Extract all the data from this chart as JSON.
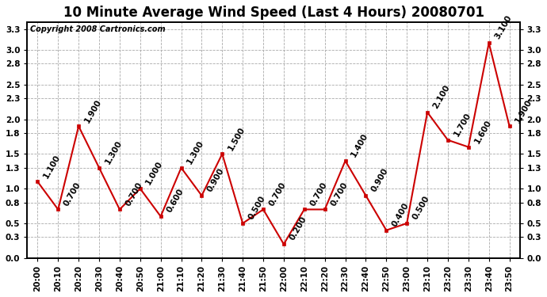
{
  "title": "10 Minute Average Wind Speed (Last 4 Hours) 20080701",
  "copyright": "Copyright 2008 Cartronics.com",
  "times": [
    "20:00",
    "20:10",
    "20:20",
    "20:30",
    "20:40",
    "20:50",
    "21:00",
    "21:10",
    "21:20",
    "21:30",
    "21:40",
    "21:50",
    "22:00",
    "22:10",
    "22:20",
    "22:30",
    "22:40",
    "22:50",
    "23:00",
    "23:10",
    "23:20",
    "23:30",
    "23:40",
    "23:50"
  ],
  "values": [
    1.1,
    0.7,
    1.9,
    1.3,
    0.7,
    1.0,
    0.6,
    1.3,
    0.9,
    1.5,
    0.5,
    0.7,
    0.2,
    0.7,
    0.7,
    1.4,
    0.9,
    0.4,
    0.5,
    2.1,
    1.7,
    1.6,
    3.1,
    1.9
  ],
  "line_color": "#cc0000",
  "marker_color": "#cc0000",
  "bg_color": "#ffffff",
  "grid_color": "#aaaaaa",
  "ylim": [
    0.0,
    3.4
  ],
  "yticks": [
    0.0,
    0.3,
    0.5,
    0.8,
    1.0,
    1.3,
    1.5,
    1.8,
    2.0,
    2.3,
    2.5,
    2.8,
    3.0,
    3.3
  ],
  "title_fontsize": 12,
  "label_fontsize": 7.5,
  "copyright_fontsize": 7,
  "annotation_fontsize": 7.5
}
